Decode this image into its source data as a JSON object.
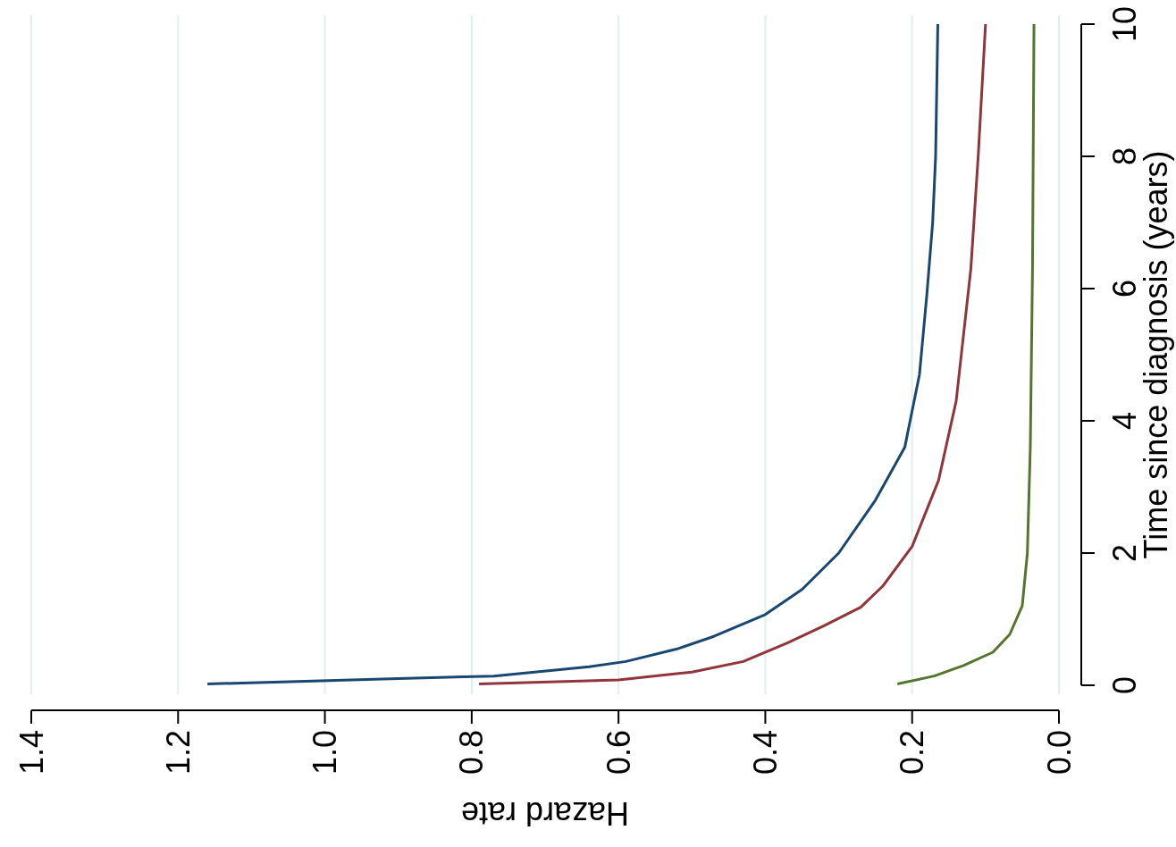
{
  "chart_data": {
    "type": "line",
    "xlabel": "Hazard rate",
    "ylabel": "Time since diagnosis (years)",
    "xlim": [
      1.4,
      0
    ],
    "xticks": [
      1.4,
      1.2,
      {
        "value": 1,
        "label": "1.0"
      },
      0.8,
      0.6,
      0.4,
      0.2,
      {
        "value": 0,
        "label": "0.0"
      }
    ],
    "ylim": [
      0,
      10
    ],
    "yticks": [
      0,
      2,
      4,
      6,
      8,
      10
    ],
    "grid": "x",
    "series": [
      {
        "color": "#1a476f",
        "x": [
          1.16,
          0.9,
          0.77,
          0.64,
          0.59,
          0.52,
          0.47,
          0.4,
          0.35,
          0.3,
          0.25,
          0.21,
          0.19,
          0.18,
          0.172,
          0.168,
          0.165
        ],
        "values": [
          0.02,
          0.1,
          0.14,
          0.28,
          0.36,
          0.55,
          0.74,
          1.07,
          1.45,
          2,
          2.8,
          3.6,
          4.7,
          5.9,
          7,
          8,
          10
        ]
      },
      {
        "color": "#90353b",
        "x": [
          0.79,
          0.6,
          0.5,
          0.43,
          0.37,
          0.32,
          0.27,
          0.24,
          0.2,
          0.164,
          0.14,
          0.12,
          0.11,
          0.1
        ],
        "values": [
          0.02,
          0.08,
          0.2,
          0.36,
          0.64,
          0.9,
          1.18,
          1.5,
          2.1,
          3.1,
          4.3,
          6.3,
          8,
          10
        ]
      },
      {
        "color": "#55752f",
        "x": [
          0.22,
          0.17,
          0.13,
          0.09,
          0.067,
          0.05,
          0.043,
          0.039,
          0.036,
          0.034
        ],
        "values": [
          0.02,
          0.14,
          0.3,
          0.5,
          0.77,
          1.2,
          2,
          3.6,
          6.3,
          10
        ]
      }
    ]
  }
}
